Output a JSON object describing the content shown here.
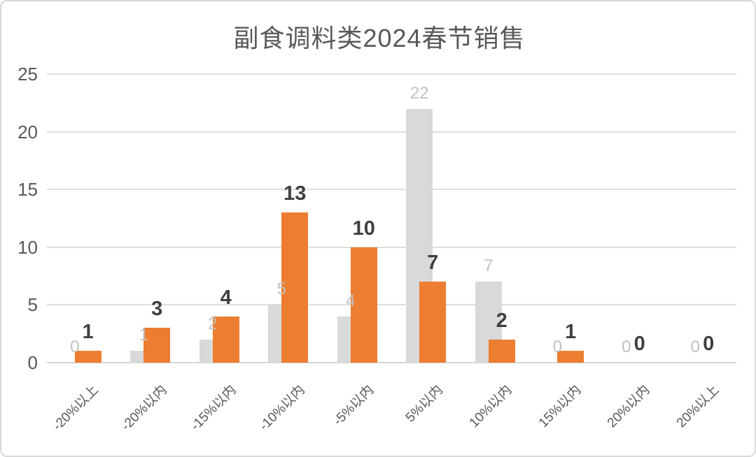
{
  "title": "副食调料类2024春节销售",
  "chart_data": {
    "type": "bar",
    "title": "副食调料类2024春节销售",
    "categories": [
      "-20%以上",
      "-20%以内",
      "-15%以内",
      "-10%以内",
      "-5%以内",
      "5%以内",
      "10%以内",
      "15%以内",
      "20%以内",
      "20%以上"
    ],
    "series": [
      {
        "name": "gray-series",
        "color": "#d9d9d9",
        "label_color": "#c1c1c1",
        "values": [
          0,
          1,
          2,
          5,
          4,
          22,
          7,
          0,
          0,
          0
        ]
      },
      {
        "name": "orange-series",
        "color": "#ed7d31",
        "label_color": "#3f3f3f",
        "values": [
          1,
          3,
          4,
          13,
          10,
          7,
          2,
          1,
          0,
          0
        ]
      }
    ],
    "y_ticks": [
      0,
      5,
      10,
      15,
      20,
      25
    ],
    "ylim": [
      0,
      25
    ],
    "xlabel": "",
    "ylabel": "",
    "grid": true,
    "legend": "none",
    "x_label_rotation": -45,
    "bar_overlap_percent": 50,
    "accent_color": "#ed7d31",
    "gridline_color": "#dedede",
    "axis_text_color": "#595959"
  }
}
